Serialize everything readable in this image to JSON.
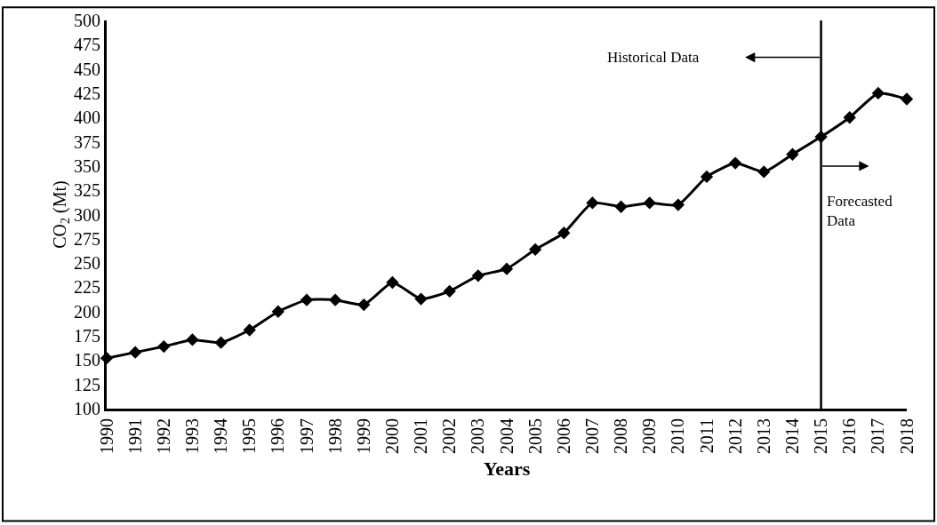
{
  "chart_data": {
    "type": "line",
    "xlabel": "Years",
    "ylabel": "CO$_{2}$ (Mt)",
    "x": [
      1990,
      1991,
      1992,
      1993,
      1994,
      1995,
      1996,
      1997,
      1998,
      1999,
      2000,
      2001,
      2002,
      2003,
      2004,
      2005,
      2006,
      2007,
      2008,
      2009,
      2010,
      2011,
      2012,
      2013,
      2014,
      2015,
      2016,
      2017,
      2018
    ],
    "series": [
      {
        "color": "#000000",
        "values": [
          152,
          158,
          164,
          171,
          168,
          181,
          200,
          212,
          212,
          207,
          230,
          213,
          221,
          237,
          244,
          264,
          281,
          312,
          308,
          312,
          310,
          339,
          353,
          344,
          362,
          380,
          400,
          425,
          419
        ]
      }
    ],
    "xlim": [
      1990,
      2018
    ],
    "xticks": [
      1990,
      1991,
      1992,
      1993,
      1994,
      1995,
      1996,
      1997,
      1998,
      1999,
      2000,
      2001,
      2002,
      2003,
      2004,
      2005,
      2006,
      2007,
      2008,
      2009,
      2010,
      2011,
      2012,
      2013,
      2014,
      2015,
      2016,
      2017,
      2018
    ],
    "ylim": [
      100,
      500
    ],
    "yticks": [
      100,
      125,
      150,
      175,
      200,
      225,
      250,
      275,
      300,
      325,
      350,
      375,
      400,
      425,
      450,
      475,
      500
    ],
    "ref_lines": [
      {
        "axis": "x",
        "value": 2015,
        "color": "#000000"
      }
    ],
    "annotations": [
      "Historical Data",
      "Forecasted\nData"
    ],
    "marker": "diamond",
    "line_style": "solid"
  }
}
